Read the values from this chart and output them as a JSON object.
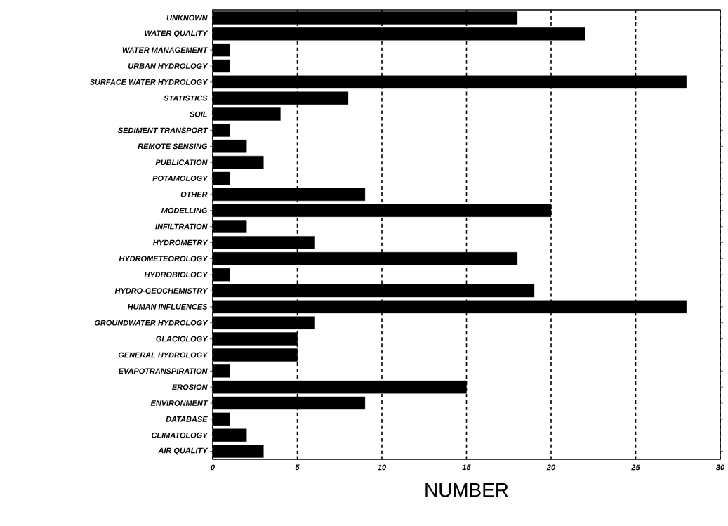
{
  "chart_data": {
    "type": "bar",
    "orientation": "horizontal",
    "xlabel": "NUMBER",
    "categories": [
      "UNKNOWN",
      "WATER QUALITY",
      "WATER MANAGEMENT",
      "URBAN HYDROLOGY",
      "SURFACE WATER HYDROLOGY",
      "STATISTICS",
      "SOIL",
      "SEDIMENT TRANSPORT",
      "REMOTE SENSING",
      "PUBLICATION",
      "POTAMOLOGY",
      "OTHER",
      "MODELLING",
      "INFILTRATION",
      "HYDROMETRY",
      "HYDROMETEOROLOGY",
      "HYDROBIOLOGY",
      "HYDRO-GEOCHEMISTRY",
      "HUMAN INFLUENCES",
      "GROUNDWATER HYDROLOGY",
      "GLACIOLOGY",
      "GENERAL HYDROLOGY",
      "EVAPOTRANSPIRATION",
      "EROSION",
      "ENVIRONMENT",
      "DATABASE",
      "CLIMATOLOGY",
      "AIR QUALITY"
    ],
    "values": [
      18,
      22,
      1,
      1,
      28,
      8,
      4,
      1,
      2,
      3,
      1,
      9,
      20,
      2,
      6,
      18,
      1,
      19,
      28,
      6,
      5,
      5,
      1,
      15,
      9,
      1,
      2,
      3
    ],
    "color": "#000000",
    "xlim": [
      0,
      30
    ],
    "xticks": [
      0,
      5,
      10,
      15,
      20,
      25,
      30
    ],
    "grid": "x"
  }
}
